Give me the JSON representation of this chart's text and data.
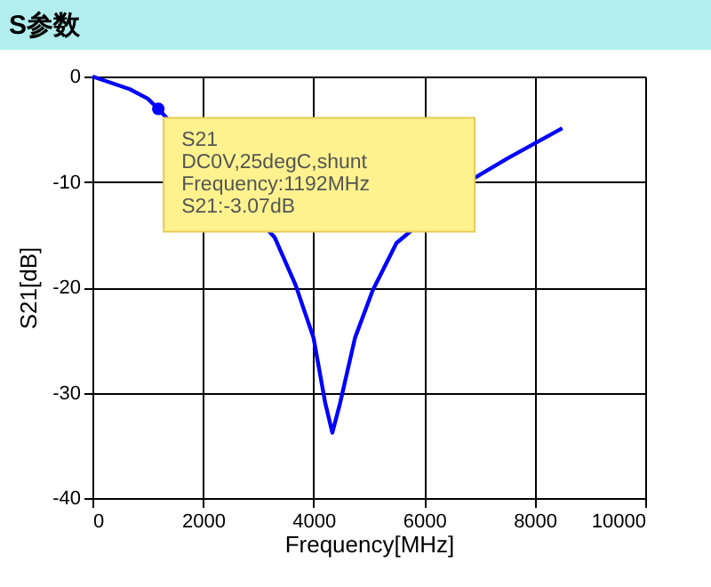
{
  "chart_data": {
    "type": "line",
    "title": "S参数",
    "xlabel": "Frequency[MHz]",
    "ylabel": "S21[dB]",
    "xlim": [
      0,
      10000
    ],
    "xticks": [
      0,
      2000,
      4000,
      6000,
      8000,
      10000
    ],
    "ylim": [
      -40,
      0
    ],
    "yticks": [
      -40,
      -30,
      -20,
      -10,
      0
    ],
    "grid": true,
    "line_style": "solid",
    "marker": "none",
    "series": [
      {
        "type": "line",
        "color": "#0000ff",
        "x": [
          0,
          675,
          1000,
          1192,
          1300,
          3300,
          3676,
          4000,
          4212,
          4340,
          4480,
          4750,
          5070,
          5500,
          6890,
          7500,
          8500
        ],
        "values": [
          0,
          -1.2,
          -2.1,
          -3.07,
          -3.7,
          -15.3,
          -19.8,
          -24.8,
          -31,
          -33.8,
          -31,
          -24.8,
          -20.3,
          -15.8,
          -9.7,
          -7.8,
          -4.9
        ]
      },
      {
        "type": "scatter",
        "color": "#0000ff",
        "marker": "circle",
        "x": [
          1192
        ],
        "values": [
          -3.07
        ]
      }
    ],
    "annotations": [
      {
        "text": "S21\nDC0V,25degC,shunt\nFrequency:1192MHz\nS21:-3.07dB",
        "x": 1192,
        "y": -3.07
      }
    ]
  }
}
